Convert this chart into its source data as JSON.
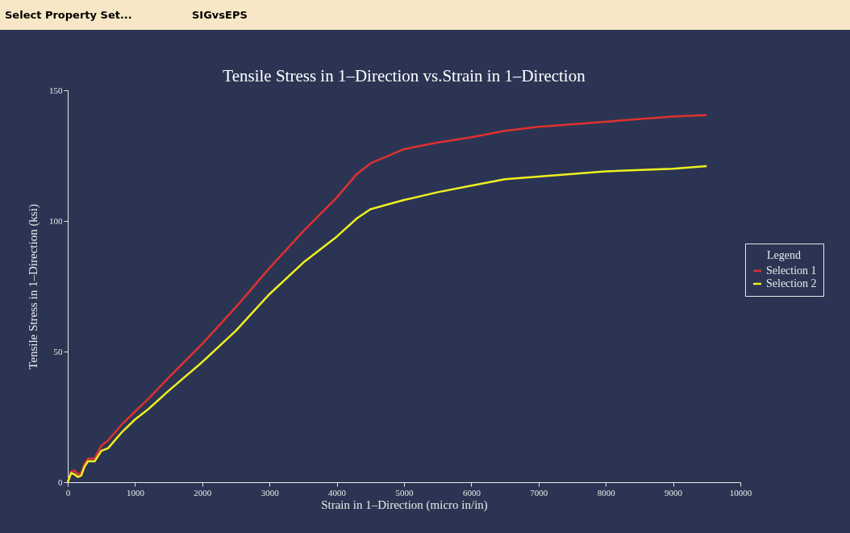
{
  "chart_data": {
    "type": "line",
    "title": "Tensile Stress in 1–Direction vs.Strain in 1–Direction",
    "xlabel": "Strain in 1–Direction (micro in/in)",
    "ylabel": "Tensile Stress in 1–Direction (ksi)",
    "legend_title": "Legend",
    "annotations": [
      "Select Property Set...",
      "SIGvsEPS"
    ],
    "xlim": [
      0,
      10000
    ],
    "xticks": [
      0,
      1000,
      2000,
      3000,
      4000,
      5000,
      6000,
      7000,
      8000,
      9000,
      10000
    ],
    "ylim": [
      0,
      150
    ],
    "yticks": [
      0,
      50,
      100,
      150
    ],
    "grid": false,
    "legend": "right",
    "line_style": "solid",
    "marker": "none",
    "series": [
      {
        "name": "Selection 1",
        "color": "#e03030",
        "x": [
          0,
          50,
          100,
          150,
          200,
          250,
          300,
          400,
          500,
          600,
          700,
          800,
          1000,
          1200,
          1500,
          2000,
          2500,
          3000,
          3500,
          4000,
          4300,
          4500,
          5000,
          5500,
          6000,
          6500,
          7000,
          8000,
          9000,
          9500
        ],
        "values": [
          0,
          4,
          4.5,
          3,
          3.5,
          7,
          9,
          9,
          14,
          16,
          19,
          22,
          27,
          32,
          40,
          53,
          67,
          82,
          96,
          109,
          118,
          122,
          127.5,
          130,
          132,
          134.5,
          136,
          138,
          140,
          140.5
        ]
      },
      {
        "name": "Selection 2",
        "color": "#f0f020",
        "x": [
          0,
          50,
          100,
          150,
          200,
          250,
          300,
          400,
          500,
          600,
          700,
          800,
          1000,
          1200,
          1500,
          2000,
          2500,
          3000,
          3500,
          4000,
          4300,
          4500,
          5000,
          5500,
          6000,
          6500,
          7000,
          8000,
          9000,
          9500
        ],
        "values": [
          0,
          3.5,
          3,
          2,
          2.5,
          6,
          8,
          8,
          12,
          13,
          16,
          19,
          24,
          28,
          35,
          46,
          58,
          72,
          84,
          94,
          101,
          104.5,
          108,
          111,
          113.5,
          116,
          117,
          119,
          120,
          121
        ]
      }
    ]
  }
}
